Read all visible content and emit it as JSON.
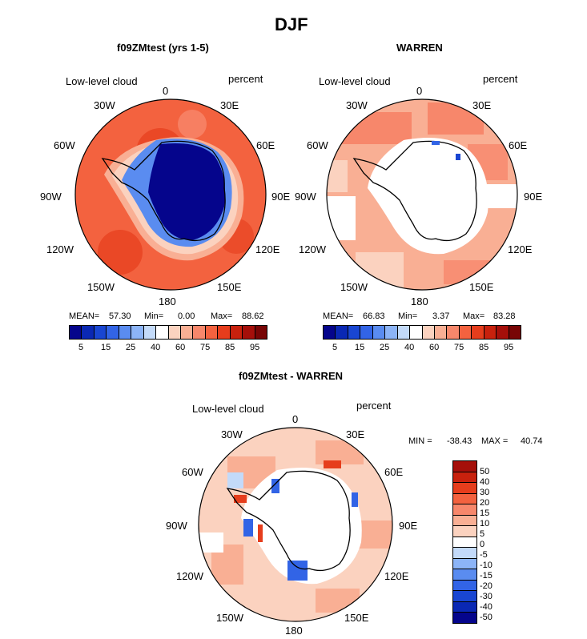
{
  "title": "DJF",
  "chart_data": [
    {
      "type": "heatmap",
      "projection": "south-polar-stereographic",
      "title": "f09ZMtest (yrs 1-5)",
      "variable": "Low-level cloud",
      "units": "percent",
      "lon_labels": [
        "0",
        "30E",
        "60E",
        "90E",
        "120E",
        "150E",
        "180",
        "150W",
        "120W",
        "90W",
        "60W",
        "30W"
      ],
      "mean_label": "MEAN=",
      "mean": "57.30",
      "min_label": "Min=",
      "min": "0.00",
      "max_label": "Max=",
      "max": "88.62",
      "colorbar_ticks": [
        "5",
        "15",
        "25",
        "40",
        "60",
        "75",
        "85",
        "95"
      ],
      "colors": [
        "#05058c",
        "#0a28b4",
        "#1946d2",
        "#3264e6",
        "#5a8cf0",
        "#8cb4f7",
        "#c3daf9",
        "#ffffff",
        "#fbd2bf",
        "#f9af94",
        "#f7876b",
        "#f3623f",
        "#e63d1c",
        "#c8210d",
        "#a50f0a",
        "#780505"
      ],
      "field": {
        "interior_value": 2,
        "coast_value": 25,
        "ocean_value": 82
      }
    },
    {
      "type": "heatmap",
      "projection": "south-polar-stereographic",
      "title": "WARREN",
      "variable": "Low-level cloud",
      "units": "percent",
      "lon_labels": [
        "0",
        "30E",
        "60E",
        "90E",
        "120E",
        "150E",
        "180",
        "150W",
        "120W",
        "90W",
        "60W",
        "30W"
      ],
      "mean_label": "MEAN=",
      "mean": "66.83",
      "min_label": "Min=",
      "min": "3.37",
      "max_label": "Max=",
      "max": "83.28",
      "colorbar_ticks": [
        "5",
        "15",
        "25",
        "40",
        "60",
        "75",
        "85",
        "95"
      ],
      "field": {
        "land": "missing",
        "ocean_value": 68
      }
    },
    {
      "type": "heatmap",
      "projection": "south-polar-stereographic",
      "title": "f09ZMtest - WARREN",
      "variable": "Low-level cloud",
      "units": "percent",
      "lon_labels": [
        "0",
        "30E",
        "60E",
        "90E",
        "120E",
        "150E",
        "180",
        "150W",
        "120W",
        "90W",
        "60W",
        "30W"
      ],
      "min_label": "MIN =",
      "min": "-38.43",
      "max_label": "MAX =",
      "max": "40.74",
      "colorbar_ticks": [
        "50",
        "40",
        "30",
        "20",
        "15",
        "10",
        "5",
        "0",
        "-5",
        "-10",
        "-15",
        "-20",
        "-30",
        "-40",
        "-50"
      ],
      "colors": [
        "#a50f0a",
        "#c8210d",
        "#e63d1c",
        "#f3623f",
        "#f7876b",
        "#f9af94",
        "#fbd2bf",
        "#ffffff",
        "#c3daf9",
        "#8cb4f7",
        "#5a8cf0",
        "#3264e6",
        "#1946d2",
        "#0a28b4",
        "#05058c"
      ],
      "field": {
        "land": "missing",
        "ocean_value": 8
      }
    }
  ]
}
